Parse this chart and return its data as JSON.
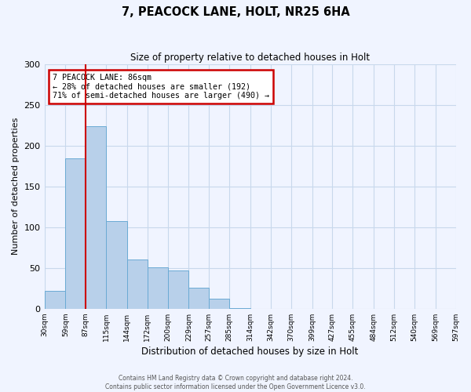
{
  "title": "7, PEACOCK LANE, HOLT, NR25 6HA",
  "subtitle": "Size of property relative to detached houses in Holt",
  "xlabel": "Distribution of detached houses by size in Holt",
  "ylabel": "Number of detached properties",
  "bin_labels": [
    "30sqm",
    "59sqm",
    "87sqm",
    "115sqm",
    "144sqm",
    "172sqm",
    "200sqm",
    "229sqm",
    "257sqm",
    "285sqm",
    "314sqm",
    "342sqm",
    "370sqm",
    "399sqm",
    "427sqm",
    "455sqm",
    "484sqm",
    "512sqm",
    "540sqm",
    "569sqm",
    "597sqm"
  ],
  "bin_edges": [
    30,
    59,
    87,
    115,
    144,
    172,
    200,
    229,
    257,
    285,
    314,
    342,
    370,
    399,
    427,
    455,
    484,
    512,
    540,
    569,
    597
  ],
  "bar_heights": [
    22,
    184,
    224,
    107,
    60,
    51,
    47,
    26,
    12,
    1,
    0,
    0,
    0,
    0,
    0,
    0,
    0,
    0,
    0,
    0,
    2
  ],
  "bar_color": "#b8d0ea",
  "bar_edge_color": "#6aaad4",
  "grid_color": "#c8d8ec",
  "annotation_box_color": "#cc0000",
  "vline_x": 87,
  "vline_color": "#cc0000",
  "annotation_text": "7 PEACOCK LANE: 86sqm\n← 28% of detached houses are smaller (192)\n71% of semi-detached houses are larger (490) →",
  "ylim": [
    0,
    300
  ],
  "yticks": [
    0,
    50,
    100,
    150,
    200,
    250,
    300
  ],
  "footer_line1": "Contains HM Land Registry data © Crown copyright and database right 2024.",
  "footer_line2": "Contains public sector information licensed under the Open Government Licence v3.0.",
  "background_color": "#f0f4ff"
}
